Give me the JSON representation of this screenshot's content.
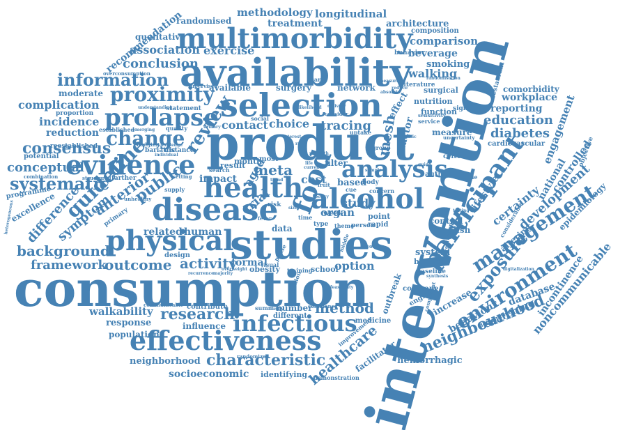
{
  "colors": {
    "word": "#4682b4",
    "background": "#ffffff"
  },
  "words": {
    "intervention": "intervention",
    "consumption": "consumption",
    "product": "product",
    "availability": "availability",
    "studies": "studies",
    "selection": "selection",
    "multimorbidity": "multimorbidity",
    "disease": "disease",
    "health": "health",
    "evidence": "evidence",
    "physical": "physical",
    "alcohol": "alcohol",
    "effectiveness": "effectiveness",
    "infectious": "infectious",
    "participant": "participant",
    "management": "management",
    "environment": "environment",
    "analysis": "analysis",
    "prolapse": "prolapse",
    "proximity": "proximity",
    "information": "information",
    "change": "change",
    "guideline": "guideline",
    "food": "food",
    "exposure": "exposure",
    "outcome": "outcome",
    "activity": "activity",
    "research": "research",
    "method": "method",
    "neighbourhood": "neighbourhood",
    "characteristic": "characteristic",
    "healthcare": "healthcare",
    "background": "background",
    "framework": "framework",
    "consensus": "consensus",
    "systematic": "systematic",
    "conceptual": "conceptual",
    "difference": "difference",
    "symptom": "symptom",
    "anterior": "anterior",
    "public": "public",
    "review": "review",
    "association": "association",
    "conclusion": "conclusion",
    "methodology": "methodology",
    "longitudinal": "longitudinal",
    "treatment": "treatment",
    "randomised": "randomised",
    "qualitative": "qualitative",
    "recommendation": "recommendation",
    "exercise": "exercise",
    "architecture": "architecture",
    "composition": "composition",
    "comparison": "comparison",
    "beverage": "beverage",
    "smoking": "smoking",
    "walking": "walking",
    "complication": "complication",
    "incidence": "incidence",
    "reduction": "reduction",
    "education": "education",
    "diabetes": "diabetes",
    "workplace": "workplace",
    "comorbidity": "comorbidity",
    "reporting": "reporting",
    "engagement": "engagement",
    "development": "development",
    "certainty": "certainty",
    "lifestyle": "lifestyle",
    "controlled": "controlled",
    "national": "national",
    "epidemiology": "epidemiology",
    "noncommunicable": "noncommunicable",
    "incontinence": "incontinence",
    "database": "database",
    "searching": "searching",
    "behaviour": "behaviour",
    "increase": "increase",
    "walkability": "walkability",
    "response": "response",
    "population": "population",
    "neighborhood": "neighborhood",
    "socioeconomic": "socioeconomic",
    "identifying": "identifying",
    "hemorrhagic": "hemorrhagic",
    "facilitator": "facilitator",
    "influence": "influence",
    "contact": "contact",
    "choice": "choice",
    "tracing": "tracing",
    "mesh": "mesh",
    "factor": "factor",
    "study": "study",
    "based": "based",
    "organ": "organ",
    "filter": "filter",
    "meta": "meta",
    "aged": "aged",
    "trial": "trial",
    "cost": "cost",
    "impact": "impact",
    "related": "related",
    "human": "human",
    "formal": "formal",
    "obesity": "obesity",
    "option": "option",
    "school": "school",
    "system": "system",
    "barrier": "barrier",
    "control": "control",
    "english": "english",
    "point": "point",
    "rapid": "rapid",
    "week": "week",
    "data": "data",
    "result": "result",
    "month": "month",
    "most": "most",
    "available": "available",
    "surgery": "surgery",
    "network": "network",
    "surgical": "surgical",
    "nutrition": "nutrition",
    "function": "function",
    "measure": "measure",
    "cardiovascular": "cardiovascular",
    "criterion": "criterion",
    "author": "author",
    "effect": "effect",
    "outbreak": "outbreak",
    "cochrane": "cochrane",
    "england": "england",
    "number": "number",
    "different": "different",
    "medicine": "medicine",
    "contribute": "contribute",
    "design": "design",
    "moderate": "moderate",
    "proportion": "proportion",
    "established": "established",
    "reestablished": "reestablished",
    "potential": "potential",
    "programme": "programme",
    "excellence": "excellence",
    "primary": "primary",
    "behavior": "behavior",
    "literature": "literature",
    "significant": "significant",
    "statement": "statement",
    "supervised": "supervised",
    "quality": "quality",
    "bariatric": "bariatric",
    "distance": "distance",
    "farther": "farther",
    "structured": "structured",
    "combination": "combination",
    "overconsumption": "overconsumption",
    "baseline": "baseline",
    "altering": "altering",
    "objective": "objective",
    "restaurant": "restaurant",
    "determined": "determined",
    "improvement": "improvement",
    "demonstration": "demonstration",
    "summary": "summary",
    "confidence": "confidence",
    "communicable": "communicable",
    "randomized": "randomized",
    "unhealthy": "unhealthy",
    "supply": "supply",
    "social": "social",
    "theme": "theme",
    "person": "person",
    "type": "type",
    "time": "time",
    "risk": "risk",
    "care": "care",
    "concern": "concern",
    "body": "body",
    "uptake": "uptake",
    "group": "group",
    "service": "service",
    "setting": "setting",
    "search": "search",
    "visual": "visual",
    "fixation": "fixation",
    "uncertainty": "uncertainty",
    "regression": "regression",
    "digitalization": "digitalization",
    "consider": "consider",
    "nudging": "nudging",
    "sensitivity": "sensitivity",
    "component": "component",
    "eligible": "eligible",
    "training": "training",
    "phase": "phase",
    "fruit": "fruit",
    "fever": "fever",
    "woman": "woman",
    "middle": "middle",
    "considerable": "considerable",
    "reduce": "reduce",
    "absolute": "absolute",
    "randomisation": "randomisation",
    "understanding": "understanding",
    "emerging": "emerging",
    "knowledge": "knowledge",
    "individual": "individual",
    "likelihood": "likelihood",
    "synthesis": "synthesis",
    "testing": "testing",
    "policy": "policy",
    "current": "current",
    "measured": "measured",
    "urinary": "urinary",
    "heterogeneous": "heterogeneous",
    "overweight": "overweight",
    "majority": "majority",
    "recurrence": "recurrence",
    "interest": "interest",
    "cue": "cue",
    "pelvic": "pelvic",
    "trend": "trend",
    "mhealth": "mhealth",
    "sample": "sample",
    "delivery": "delivery",
    "rate": "rate",
    "life": "life",
    "feasibility": "feasibility",
    "guide": "guide",
    "size": "size"
  }
}
